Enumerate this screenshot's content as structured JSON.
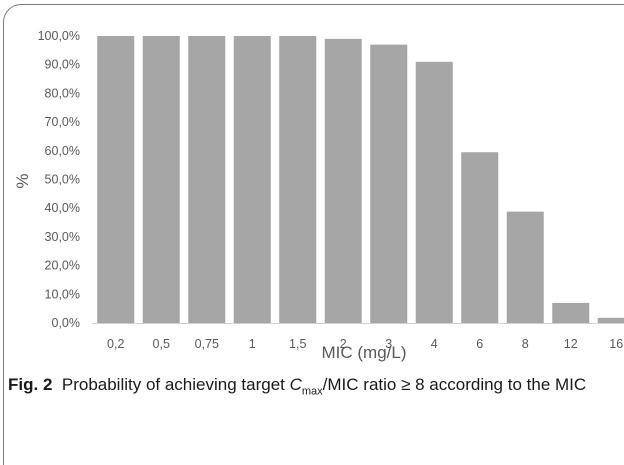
{
  "chart_data": {
    "type": "bar",
    "categories": [
      "0,2",
      "0,5",
      "0,75",
      "1",
      "1,5",
      "2",
      "3",
      "4",
      "6",
      "8",
      "12",
      "16"
    ],
    "values": [
      100.0,
      100.0,
      100.0,
      100.0,
      100.0,
      99.0,
      97.0,
      91.0,
      59.5,
      38.8,
      7.0,
      1.8
    ],
    "ylim": [
      0,
      100
    ],
    "yticks": [
      "0,0%",
      "10,0%",
      "20,0%",
      "30,0%",
      "40,0%",
      "50,0%",
      "60,0%",
      "70,0%",
      "80,0%",
      "90,0%",
      "100,0%"
    ],
    "xlabel": "MIC (mg/L)",
    "ylabel": "%",
    "bar_color": "#a6a6a6",
    "grid": false
  },
  "caption": {
    "fig_label": "Fig. 2",
    "text_before": "Probability of achieving target ",
    "c": "C",
    "c_sub": "max",
    "text_after": "/MIC ratio ≥ 8 according to the MIC"
  }
}
